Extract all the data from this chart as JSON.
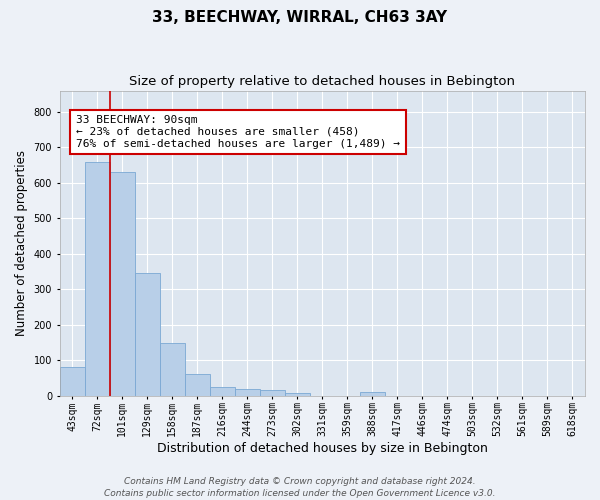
{
  "title": "33, BEECHWAY, WIRRAL, CH63 3AY",
  "subtitle": "Size of property relative to detached houses in Bebington",
  "xlabel": "Distribution of detached houses by size in Bebington",
  "ylabel": "Number of detached properties",
  "categories": [
    "43sqm",
    "72sqm",
    "101sqm",
    "129sqm",
    "158sqm",
    "187sqm",
    "216sqm",
    "244sqm",
    "273sqm",
    "302sqm",
    "331sqm",
    "359sqm",
    "388sqm",
    "417sqm",
    "446sqm",
    "474sqm",
    "503sqm",
    "532sqm",
    "561sqm",
    "589sqm",
    "618sqm"
  ],
  "values": [
    82,
    660,
    630,
    347,
    147,
    60,
    25,
    20,
    17,
    8,
    0,
    0,
    10,
    0,
    0,
    0,
    0,
    0,
    0,
    0,
    0
  ],
  "bar_color": "#b8cfe8",
  "bar_edge_color": "#7aa8d4",
  "vline_x": 1.5,
  "vline_color": "#cc0000",
  "annotation_text": "33 BEECHWAY: 90sqm\n← 23% of detached houses are smaller (458)\n76% of semi-detached houses are larger (1,489) →",
  "annotation_box_facecolor": "#ffffff",
  "annotation_box_edgecolor": "#cc0000",
  "ylim": [
    0,
    860
  ],
  "yticks": [
    0,
    100,
    200,
    300,
    400,
    500,
    600,
    700,
    800
  ],
  "background_color": "#dde6f0",
  "fig_background_color": "#edf1f7",
  "grid_color": "#ffffff",
  "footer_text": "Contains HM Land Registry data © Crown copyright and database right 2024.\nContains public sector information licensed under the Open Government Licence v3.0.",
  "title_fontsize": 11,
  "subtitle_fontsize": 9.5,
  "ylabel_fontsize": 8.5,
  "xlabel_fontsize": 9,
  "tick_fontsize": 7,
  "annotation_fontsize": 8,
  "footer_fontsize": 6.5
}
